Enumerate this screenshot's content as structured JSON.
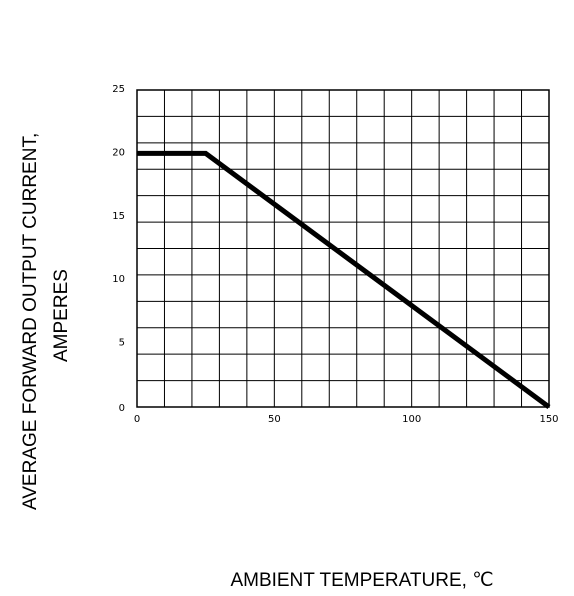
{
  "chart_data": {
    "type": "line",
    "xlabel": "AMBIENT  TEMPERATURE,  ℃",
    "ylabel_line1": "AVERAGE FORWARD OUTPUT CURRENT,",
    "ylabel_line2": "AMPERES",
    "xlim": [
      0,
      150
    ],
    "ylim": [
      0,
      25
    ],
    "grid": true,
    "x_tick_values": [
      0,
      50,
      100,
      150
    ],
    "x_tick_labels": [
      "0",
      "50",
      "100",
      "150"
    ],
    "y_tick_values": [
      0,
      5,
      10,
      15,
      20,
      25
    ],
    "y_tick_labels": [
      "0",
      "5",
      "10",
      "15",
      "20",
      "25"
    ],
    "series": [
      {
        "x": [
          0,
          25,
          150
        ],
        "y": [
          20,
          20,
          0
        ]
      }
    ],
    "line_color": "#000000"
  }
}
